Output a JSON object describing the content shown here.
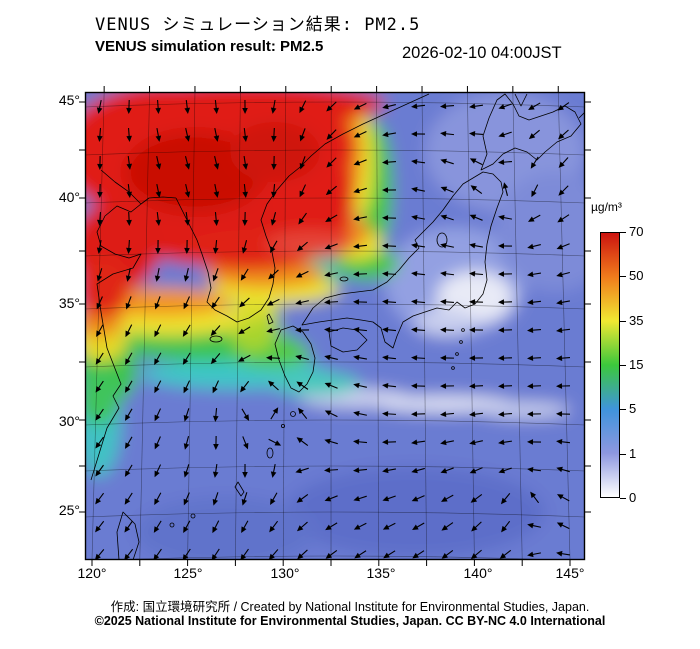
{
  "header": {
    "title_ja": "VENUS シミュレーション結果: PM2.5",
    "title_en": "VENUS simulation result: PM2.5",
    "timestamp": "2026-02-10 04:00JST"
  },
  "axes": {
    "lat_ticks": [
      "45°",
      "40°",
      "35°",
      "30°",
      "25°"
    ],
    "lon_ticks": [
      "120°",
      "125°",
      "130°",
      "135°",
      "140°",
      "145°"
    ]
  },
  "colorbar": {
    "unit": "µg/m³",
    "ticks": [
      "70",
      "50",
      "35",
      "15",
      "5",
      "1",
      "0"
    ],
    "colors_top_to_bottom": [
      "#cc1410",
      "#f07c1c",
      "#f0e832",
      "#3cc83c",
      "#3f94dc",
      "#8d97e0",
      "#ffffff"
    ]
  },
  "footer": {
    "credit": "作成: 国立環境研究所 / Created by National Institute for Environmental Studies, Japan.",
    "copyright": "©2025 National Institute for Environmental Studies, Japan. CC BY-NC 4.0 International"
  },
  "chart_data": {
    "type": "heatmap",
    "title": "VENUS simulation result: PM2.5",
    "title_ja": "VENUS シミュレーション結果: PM2.5",
    "timestamp": "2026-02-10 04:00JST",
    "unit": "µg/m³",
    "x": "longitude_deg_east",
    "y": "latitude_deg_north",
    "xlim": [
      119.5,
      146.5
    ],
    "ylim": [
      23.5,
      46.0
    ],
    "x_ticks": [
      120,
      125,
      130,
      135,
      140,
      145
    ],
    "y_ticks": [
      25,
      30,
      35,
      40,
      45
    ],
    "colorbar": {
      "ticks": [
        0,
        1,
        5,
        15,
        35,
        50,
        70
      ],
      "tick_colors": [
        "white",
        "pale periwinkle",
        "blue",
        "green-cyan boundary",
        "yellow",
        "orange",
        "red"
      ],
      "scale": "nonlinear, ticks evenly spaced on bar"
    },
    "overlay": "wind vector arrows on regular grid, cyclonic circulation over East China Sea",
    "regions": [
      {
        "area": "Northeast China / Bohai / Yellow Sea (120-130E, 36-45N)",
        "pm25_ugm3": "50-70+",
        "color": "red with orange-yellow fringe"
      },
      {
        "area": "Coastal China arm along 120E down to ~30N",
        "pm25_ugm3": "35-70",
        "color": "red-orange tongue"
      },
      {
        "area": "Korean Peninsula (126-129E, 34-38N)",
        "pm25_ugm3": "15-50",
        "color": "yellow-green"
      },
      {
        "area": "East China Sea coastal band (120-127E, 27-33N)",
        "pm25_ugm3": "5-15",
        "color": "cyan-green"
      },
      {
        "area": "Sea of Japan (132-141E, 36-44N)",
        "pm25_ugm3": "0-5",
        "color": "pale blue with white patches"
      },
      {
        "area": "Japan islands and Pacific south of Honshu (130-146E, 24-36N)",
        "pm25_ugm3": "1-5",
        "color": "blue with white streaks ~29-31N"
      },
      {
        "area": "Open ocean south and southeast (24-30N)",
        "pm25_ugm3": "1-5",
        "color": "medium blue"
      }
    ]
  }
}
